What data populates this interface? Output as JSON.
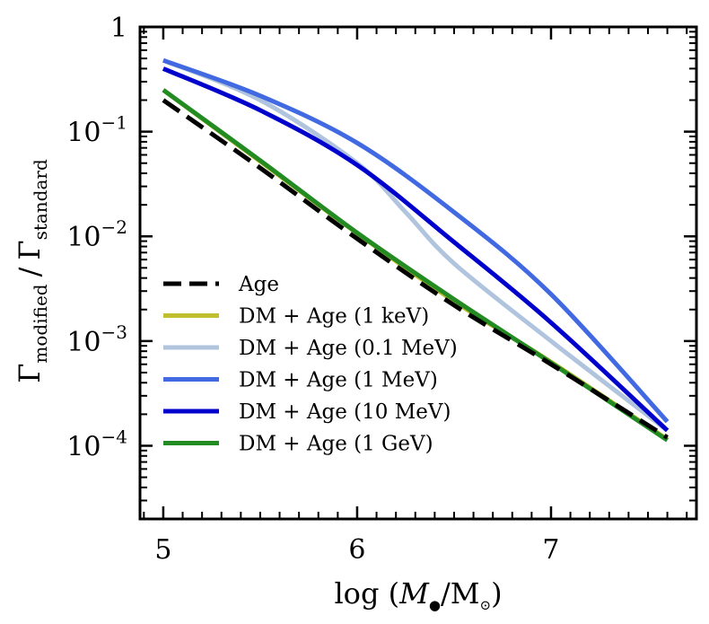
{
  "chart_data": {
    "type": "line",
    "xlabel": "log (M●/M⊙)",
    "xlabel_parts": {
      "prefix": "log (",
      "M": "M",
      "bh": "●",
      "slash": "/M",
      "sun": "⊙",
      "suffix": ")"
    },
    "ylabel_parts": {
      "gamma1": "Γ",
      "sub1": "modified",
      "sep": "/",
      "gamma2": "Γ",
      "sub2": "standard"
    },
    "xlim": [
      4.88,
      7.75
    ],
    "ylim": [
      2e-05,
      1
    ],
    "yscale": "log",
    "xticks": [
      5,
      6,
      7
    ],
    "xtick_labels": [
      "5",
      "6",
      "7"
    ],
    "ytick_labels": [
      {
        "base": "1",
        "exp": ""
      },
      {
        "base": "10",
        "exp": "−1"
      },
      {
        "base": "10",
        "exp": "−2"
      },
      {
        "base": "10",
        "exp": "−3"
      },
      {
        "base": "10",
        "exp": "−4"
      }
    ],
    "ytick_values": [
      1,
      0.1,
      0.01,
      0.001,
      0.0001
    ],
    "legend_position": "lower-left",
    "series": [
      {
        "name": "Age",
        "color": "#000000",
        "dash": true,
        "x": [
          5.0,
          5.5,
          6.0,
          6.5,
          7.0,
          7.6
        ],
        "y": [
          0.2,
          0.045,
          0.0095,
          0.0022,
          0.0006,
          0.00012
        ]
      },
      {
        "name": "DM + Age (1 keV)",
        "color": "#bfbf2f",
        "dash": false,
        "x": [
          5.0,
          5.5,
          6.0,
          6.5,
          7.0,
          7.6
        ],
        "y": [
          0.25,
          0.052,
          0.0107,
          0.0024,
          0.00063,
          0.000115
        ]
      },
      {
        "name": "DM + Age (0.1 MeV)",
        "color": "#b0c4de",
        "dash": false,
        "x": [
          5.0,
          5.5,
          6.0,
          6.25,
          6.5,
          7.0,
          7.6
        ],
        "y": [
          0.48,
          0.2,
          0.05,
          0.017,
          0.0055,
          0.001,
          0.00014
        ]
      },
      {
        "name": "DM + Age (1 MeV)",
        "color": "#4169e1",
        "dash": false,
        "x": [
          5.0,
          5.5,
          6.0,
          6.5,
          7.0,
          7.6
        ],
        "y": [
          0.48,
          0.22,
          0.078,
          0.017,
          0.0028,
          0.00017
        ]
      },
      {
        "name": "DM + Age (10 MeV)",
        "color": "#0000cd",
        "dash": false,
        "x": [
          5.0,
          5.5,
          6.0,
          6.5,
          7.0,
          7.6
        ],
        "y": [
          0.4,
          0.16,
          0.048,
          0.0088,
          0.0015,
          0.00014
        ]
      },
      {
        "name": "DM + Age (1 GeV)",
        "color": "#228b22",
        "dash": false,
        "x": [
          5.0,
          5.5,
          6.0,
          6.5,
          7.0,
          7.6
        ],
        "y": [
          0.25,
          0.053,
          0.0108,
          0.0025,
          0.00062,
          0.000113
        ]
      }
    ]
  }
}
